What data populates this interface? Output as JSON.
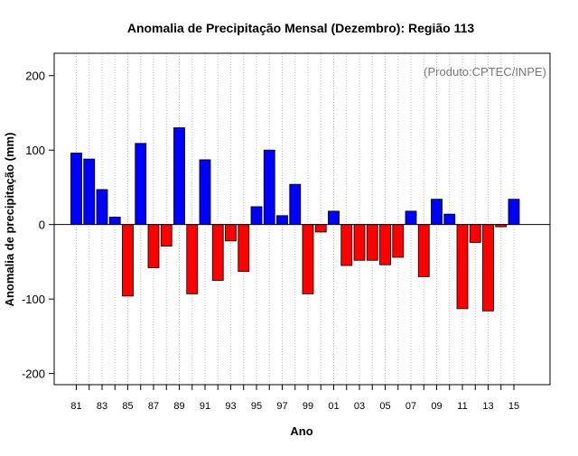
{
  "chart_data": {
    "type": "bar",
    "title": "Anomalia de Precipitação Mensal (Dezembro): Região 113",
    "xlabel": "Ano",
    "ylabel": "Anomalia de precipitação (mm)",
    "annotation": "(Produto:CPTEC/INPE)",
    "ylim": [
      -215,
      230
    ],
    "yticks": [
      -200,
      -100,
      0,
      100,
      200
    ],
    "grid": "vertical dotted",
    "positive_color": "#0000ff",
    "negative_color": "#ff0000",
    "years": [
      1981,
      1982,
      1983,
      1984,
      1985,
      1986,
      1987,
      1988,
      1989,
      1990,
      1991,
      1992,
      1993,
      1994,
      1995,
      1996,
      1997,
      1998,
      1999,
      2000,
      2001,
      2002,
      2003,
      2004,
      2005,
      2006,
      2007,
      2008,
      2009,
      2010,
      2011,
      2012,
      2013,
      2014,
      2015
    ],
    "values": [
      96,
      88,
      47,
      10,
      -96,
      109,
      -58,
      -29,
      130,
      -93,
      87,
      -75,
      -22,
      -63,
      24,
      100,
      12,
      54,
      -93,
      -10,
      18,
      -55,
      -48,
      -48,
      -54,
      -44,
      18,
      -70,
      34,
      14,
      -113,
      -24,
      -116,
      -3,
      34
    ],
    "tick_labels": [
      "81",
      "83",
      "85",
      "87",
      "89",
      "91",
      "93",
      "95",
      "97",
      "99",
      "01",
      "03",
      "05",
      "07",
      "09",
      "11",
      "13",
      "15"
    ]
  }
}
